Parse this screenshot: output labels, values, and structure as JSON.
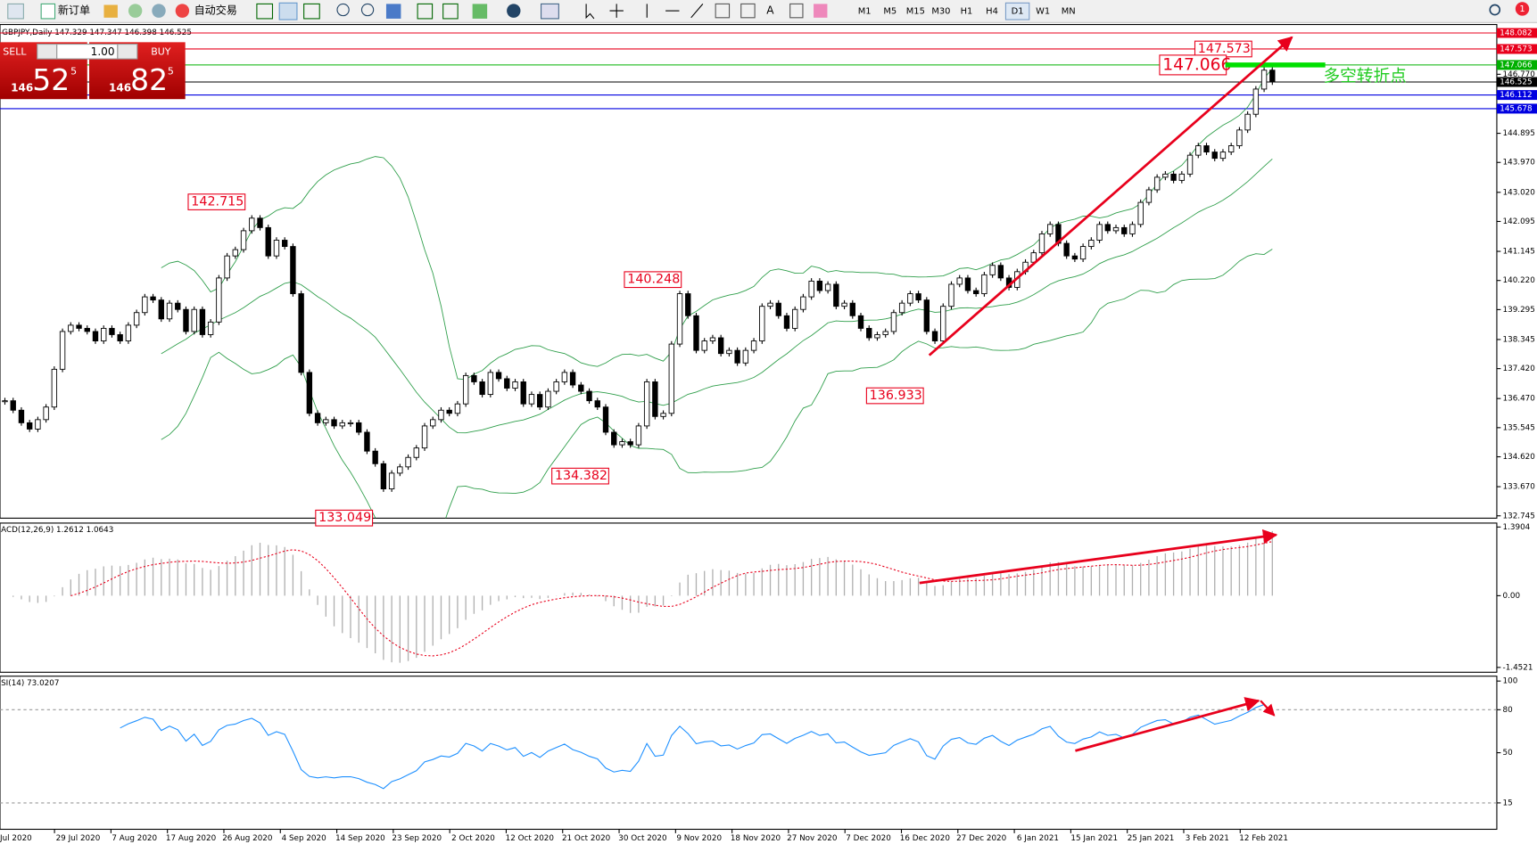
{
  "toolbar": {
    "new_order": "新订单",
    "auto_trading": "自动交易",
    "timeframes": [
      "M1",
      "M5",
      "M15",
      "M30",
      "H1",
      "H4",
      "D1",
      "W1",
      "MN"
    ],
    "active_timeframe": "D1",
    "text_tool": "A",
    "notification_count": "1"
  },
  "symbol_info": "GBPJPY,Daily  147.329 147.347 146.398 146.525",
  "trade_panel": {
    "sell": "SELL",
    "buy": "BUY",
    "lot": "1.00",
    "sell_price": {
      "prefix": "146",
      "main": "52",
      "sup": "5"
    },
    "buy_price": {
      "prefix": "146",
      "main": "82",
      "sup": "5"
    }
  },
  "chart_data": [
    {
      "type": "candlestick",
      "closes": [
        136.4,
        136.1,
        135.7,
        135.5,
        135.8,
        136.2,
        137.4,
        138.6,
        138.8,
        138.7,
        138.6,
        138.3,
        138.7,
        138.5,
        138.3,
        138.8,
        139.2,
        139.7,
        139.6,
        139.0,
        139.5,
        139.3,
        138.6,
        139.3,
        138.5,
        138.9,
        140.3,
        141.0,
        141.2,
        141.8,
        142.2,
        141.9,
        141.0,
        141.5,
        141.3,
        139.8,
        137.3,
        136.0,
        135.7,
        135.8,
        135.6,
        135.7,
        135.7,
        135.4,
        134.8,
        134.4,
        133.6,
        134.1,
        134.3,
        134.6,
        134.9,
        135.6,
        135.8,
        136.1,
        136.0,
        136.3,
        137.2,
        137.0,
        136.6,
        137.3,
        137.1,
        136.8,
        137.0,
        136.3,
        136.6,
        136.2,
        136.7,
        137.0,
        137.3,
        136.9,
        136.7,
        136.4,
        136.2,
        135.4,
        135.0,
        135.1,
        135.0,
        135.6,
        137.0,
        135.9,
        136.0,
        138.2,
        139.8,
        139.1,
        138.0,
        138.3,
        138.4,
        137.9,
        138.0,
        137.6,
        138.0,
        138.3,
        139.4,
        139.5,
        139.1,
        138.7,
        139.3,
        139.7,
        140.2,
        139.9,
        140.1,
        139.4,
        139.5,
        139.1,
        138.7,
        138.4,
        138.5,
        138.6,
        139.2,
        139.5,
        139.8,
        139.6,
        138.6,
        138.3,
        139.4,
        140.1,
        140.3,
        139.9,
        139.8,
        140.4,
        140.7,
        140.3,
        140.0,
        140.5,
        140.8,
        141.1,
        141.7,
        142.0,
        141.4,
        141.0,
        140.9,
        141.3,
        141.5,
        142.0,
        141.8,
        141.9,
        141.7,
        142.0,
        142.7,
        143.1,
        143.5,
        143.6,
        143.4,
        143.6,
        144.2,
        144.5,
        144.3,
        144.1,
        144.3,
        144.5,
        145.0,
        145.5,
        146.3,
        146.9,
        146.525
      ],
      "ylim": [
        132.67,
        148.35
      ],
      "yticks": [
        {
          "value": 146.77,
          "label": "146.770"
        },
        144.895,
        {
          "value": 143.97,
          "label": "143.970"
        },
        {
          "value": 143.02,
          "label": "143.020"
        },
        142.095,
        141.145,
        {
          "value": 140.22,
          "label": "140.220"
        },
        139.295,
        138.345,
        {
          "value": 137.42,
          "label": "137.420"
        },
        {
          "value": 136.47,
          "label": "136.470"
        },
        135.545,
        {
          "value": 134.62,
          "label": "134.620"
        },
        {
          "value": 133.67,
          "label": "133.670"
        },
        132.745
      ],
      "price_lines": [
        {
          "value": 148.082,
          "color": "#e8001c"
        },
        {
          "value": 147.573,
          "color": "#e8001c"
        },
        {
          "value": 147.066,
          "color": "#00b000"
        },
        {
          "value": 146.525,
          "color": "#000000"
        },
        {
          "value": 146.112,
          "color": "#0000e0"
        },
        {
          "value": 145.678,
          "color": "#0000e0"
        }
      ],
      "annotations": [
        142.715,
        140.248,
        136.933,
        134.382,
        133.049,
        147.573,
        147.066
      ],
      "turning_point": "多空转折点",
      "x_labels": [
        "Jul 2020",
        "29 Jul 2020",
        "7 Aug 2020",
        "17 Aug 2020",
        "26 Aug 2020",
        "4 Sep 2020",
        "14 Sep 2020",
        "23 Sep 2020",
        "2 Oct 2020",
        "12 Oct 2020",
        "21 Oct 2020",
        "30 Oct 2020",
        "9 Nov 2020",
        "18 Nov 2020",
        "27 Nov 2020",
        "7 Dec 2020",
        "16 Dec 2020",
        "27 Dec 2020",
        "6 Jan 2021",
        "15 Jan 2021",
        "25 Jan 2021",
        "3 Feb 2021",
        "12 Feb 2021"
      ]
    },
    {
      "type": "macd",
      "label": "ACD(12,26,9) 1.2612 1.0643",
      "ylim": [
        -1.55,
        1.47
      ],
      "yticks": [
        1.3904,
        {
          "value": 0,
          "label": "0.00"
        },
        -1.4521
      ]
    },
    {
      "type": "rsi",
      "label": "SI(14) 73.0207",
      "ylim": [
        -3.4,
        103.4
      ],
      "yticks": [
        100,
        80,
        50,
        15
      ],
      "levels": [
        80,
        15
      ]
    }
  ]
}
